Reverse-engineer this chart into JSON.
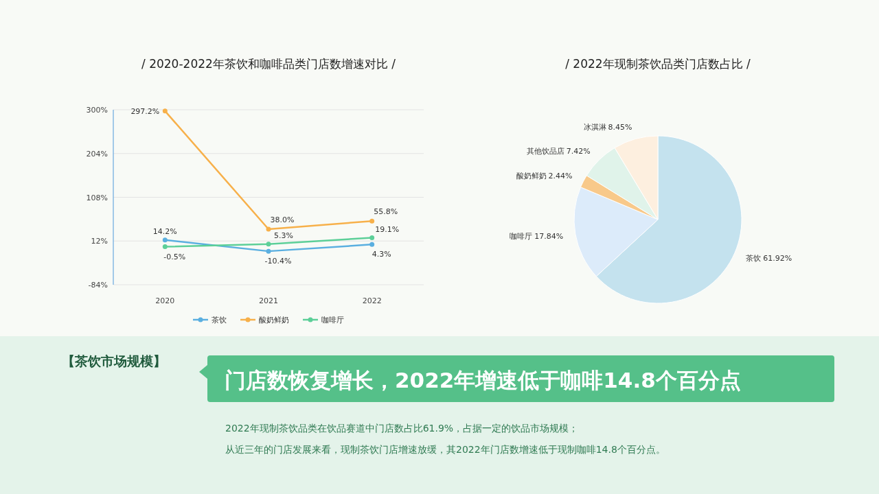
{
  "chart_data": [
    {
      "type": "line",
      "title": "/ 2020-2022年茶饮和咖啡品类门店数增速对比 /",
      "categories": [
        "2020",
        "2021",
        "2022"
      ],
      "series": [
        {
          "name": "茶饮",
          "color": "#5aafe0",
          "values": [
            14.2,
            -10.4,
            4.3
          ],
          "value_labels": [
            "14.2%",
            "-10.4%",
            "4.3%"
          ]
        },
        {
          "name": "酸奶鲜奶",
          "color": "#f7b04a",
          "values": [
            297.2,
            38.0,
            55.8
          ],
          "value_labels": [
            "297.2%",
            "38.0%",
            "55.8%"
          ]
        },
        {
          "name": "咖啡厅",
          "color": "#5ccf98",
          "values": [
            -0.5,
            5.3,
            19.1
          ],
          "value_labels": [
            "-0.5%",
            "5.3%",
            "19.1%"
          ]
        }
      ],
      "ylim": [
        -84,
        300
      ],
      "yticks": [
        {
          "value": -84,
          "label": "-84%"
        },
        {
          "value": 12,
          "label": "12%"
        },
        {
          "value": 108,
          "label": "108%"
        },
        {
          "value": 204,
          "label": "204%"
        },
        {
          "value": 300,
          "label": "300%"
        }
      ],
      "grid": "y",
      "legend": "bottom",
      "marker": "circle"
    },
    {
      "type": "pie",
      "title": "/ 2022年现制茶饮品类门店数占比 /",
      "categories": [
        "茶饮",
        "咖啡厅",
        "酸奶鲜奶",
        "其他饮品店",
        "冰淇淋"
      ],
      "values": [
        61.92,
        17.84,
        2.44,
        7.42,
        8.45
      ],
      "value_labels": [
        "61.92%",
        "17.84%",
        "2.44%",
        "7.42%",
        "8.45%"
      ],
      "colors": [
        "#c4e2ee",
        "#dcebfa",
        "#f8c98a",
        "#e0f3ea",
        "#fdefdf"
      ]
    },
    {
      "type": "other",
      "title": "【茶饮市场规模】",
      "subtitle": "门店数恢复增长，2022年增速低于咖啡14.8个百分点",
      "annotations": [
        "2022年现制茶饮品类在饮品赛道中门店数占比61.9%，占据一定的饮品市场规模；",
        "从近三年的门店发展来看，现制茶饮门店增速放缓，其2022年门店数增速低于现制咖啡14.8个百分点。"
      ]
    }
  ]
}
